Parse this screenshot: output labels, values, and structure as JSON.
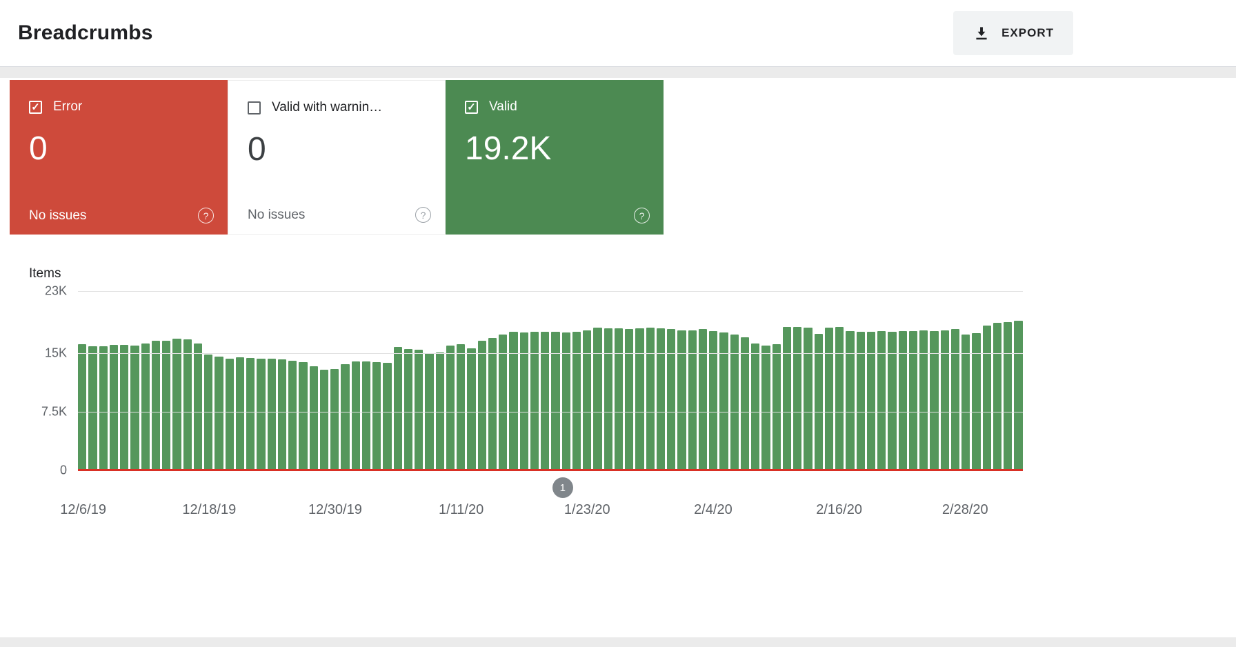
{
  "header": {
    "title": "Breadcrumbs",
    "export_label": "EXPORT"
  },
  "cards": [
    {
      "label": "Error",
      "value": "0",
      "sub": "No issues",
      "checked": true
    },
    {
      "label": "Valid with warnin…",
      "value": "0",
      "sub": "No issues",
      "checked": false
    },
    {
      "label": "Valid",
      "value": "19.2K",
      "checked": true
    }
  ],
  "chart_data": {
    "type": "bar",
    "title": "Items",
    "ylabel": "Items",
    "ylim": [
      0,
      23000
    ],
    "grid": true,
    "legend": "none",
    "yticks": [
      {
        "label": "23K",
        "value": 23000
      },
      {
        "label": "15K",
        "value": 15000
      },
      {
        "label": "7.5K",
        "value": 7500
      },
      {
        "label": "0",
        "value": 0
      }
    ],
    "x_tick_labels": [
      "12/6/19",
      "12/18/19",
      "12/30/19",
      "1/11/20",
      "1/23/20",
      "2/4/20",
      "2/16/20",
      "2/28/20"
    ],
    "x_tick_indices": [
      0,
      12,
      24,
      36,
      48,
      60,
      72,
      84
    ],
    "series": [
      {
        "name": "Valid",
        "color": "#55975c",
        "values": [
          16200,
          15900,
          15950,
          16100,
          16100,
          16000,
          16300,
          16600,
          16650,
          16900,
          16800,
          16300,
          14900,
          14600,
          14300,
          14500,
          14400,
          14350,
          14300,
          14200,
          14100,
          13900,
          13400,
          12900,
          13000,
          13600,
          14000,
          13950,
          13900,
          13800,
          15800,
          15600,
          15500,
          15000,
          15100,
          16000,
          16200,
          15700,
          16600,
          17000,
          17400,
          17800,
          17700,
          17800,
          17800,
          17800,
          17700,
          17800,
          18000,
          18300,
          18200,
          18200,
          18100,
          18200,
          18300,
          18200,
          18100,
          18000,
          18000,
          18100,
          17900,
          17700,
          17400,
          17100,
          16300,
          16000,
          16200,
          18400,
          18400,
          18300,
          17500,
          18300,
          18400,
          17900,
          17800,
          17800,
          17900,
          17800,
          17900,
          17900,
          18000,
          17900,
          18000,
          18100,
          17400,
          17600,
          18600,
          18900,
          19000,
          19200
        ]
      },
      {
        "name": "Error",
        "color": "#d93025",
        "constant_value": 0
      }
    ],
    "annotation": {
      "label": "1",
      "x_fraction": 0.513
    }
  },
  "colors": {
    "error_card": "#ce4a3b",
    "valid_card": "#4c8a52",
    "bar_green": "#55975c",
    "zero_line": "#d93025",
    "annotation_circle": "#80868b",
    "gridline": "#e2e2e2"
  }
}
